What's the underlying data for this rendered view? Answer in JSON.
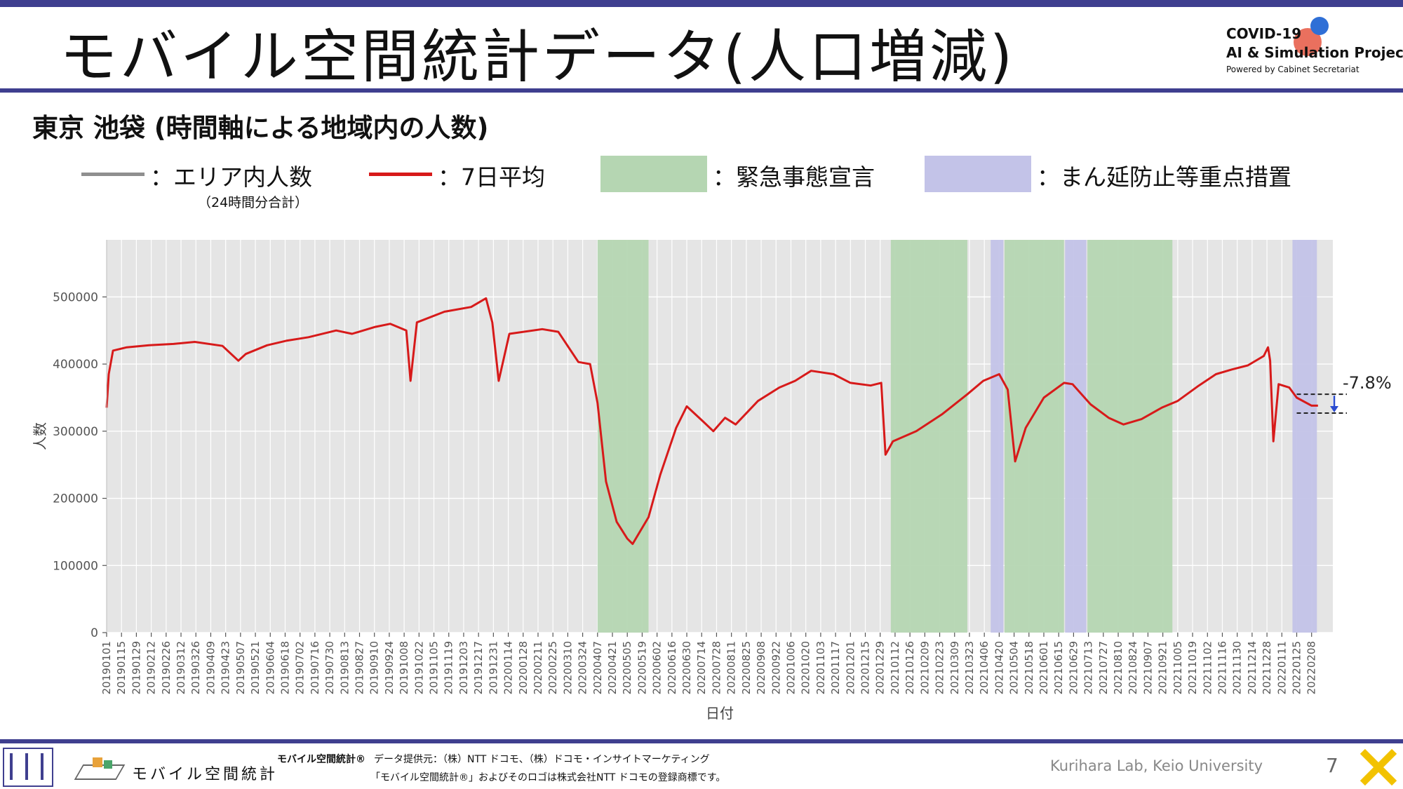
{
  "slide": {
    "title": "モバイル空間統計データ(人口増減)",
    "subtitle": "東京 池袋 (時間軸による地域内の人数)",
    "logo": {
      "line1": "COVID-19",
      "line2": "AI & Simulation Project",
      "line3": "Powered by Cabinet Secretariat"
    },
    "legend": {
      "raw_label": "：エリア内人数",
      "raw_note": "（24時間分合計）",
      "avg_label": "：7日平均",
      "emergency_label": "：緊急事態宣言",
      "semi_label": "：まん延防止等重点措置"
    },
    "footer": {
      "brand_left": "モバイル空間統計",
      "brand_small": "モバイル空間統計®",
      "provider": "データ提供元：（株）NTT ドコモ、（株）ドコモ・インサイトマーケティング",
      "trademark": "「モバイル空間統計®」およびそのロゴは株式会社NTT ドコモの登録商標です。",
      "lab": "Kurihara Lab, Keio University",
      "page": "7"
    },
    "colors": {
      "accent_bar": "#3f3f8f",
      "raw": "#9a9a9a",
      "avg": "#d71a1a",
      "emergency": "#b5d6b2",
      "semi": "#c3c3e8"
    }
  },
  "chart_data": {
    "type": "line",
    "xlabel": "日付",
    "ylabel": "人数",
    "ylim": [
      0,
      585000
    ],
    "yticks": [
      0,
      100000,
      200000,
      300000,
      400000,
      500000
    ],
    "ytick_labels": [
      "0",
      "100000",
      "200000",
      "300000",
      "400000",
      "500000"
    ],
    "xlim": [
      "2019-01-01",
      "2022-02-28"
    ],
    "x_tick_labels": [
      "20190101",
      "20190115",
      "20190129",
      "20190212",
      "20190226",
      "20190312",
      "20190326",
      "20190409",
      "20190423",
      "20190507",
      "20190521",
      "20190604",
      "20190618",
      "20190702",
      "20190716",
      "20190730",
      "20190813",
      "20190827",
      "20190910",
      "20190924",
      "20191008",
      "20191022",
      "20191105",
      "20191119",
      "20191203",
      "20191217",
      "20191231",
      "20200114",
      "20200128",
      "20200211",
      "20200225",
      "20200310",
      "20200324",
      "20200407",
      "20200421",
      "20200505",
      "20200519",
      "20200602",
      "20200616",
      "20200630",
      "20200714",
      "20200728",
      "20200811",
      "20200825",
      "20200908",
      "20200922",
      "20201006",
      "20201020",
      "20201103",
      "20201117",
      "20201201",
      "20201215",
      "20201229",
      "20210112",
      "20210126",
      "20210209",
      "20210223",
      "20210309",
      "20210323",
      "20210406",
      "20210420",
      "20210504",
      "20210518",
      "20210601",
      "20210615",
      "20210629",
      "20210713",
      "20210727",
      "20210810",
      "20210824",
      "20210907",
      "20210921",
      "20211005",
      "20211019",
      "20211102",
      "20211116",
      "20211130",
      "20211214",
      "20211228",
      "20220111",
      "20220125",
      "20220208"
    ],
    "grid": true,
    "bands": [
      {
        "kind": "emergency",
        "start": "2020-04-07",
        "end": "2020-05-25"
      },
      {
        "kind": "emergency",
        "start": "2021-01-08",
        "end": "2021-03-21"
      },
      {
        "kind": "semi",
        "start": "2021-04-12",
        "end": "2021-04-24"
      },
      {
        "kind": "emergency",
        "start": "2021-04-25",
        "end": "2021-06-20"
      },
      {
        "kind": "semi",
        "start": "2021-06-21",
        "end": "2021-07-11"
      },
      {
        "kind": "emergency",
        "start": "2021-07-12",
        "end": "2021-09-30"
      },
      {
        "kind": "semi",
        "start": "2022-01-21",
        "end": "2022-02-13"
      }
    ],
    "series": [
      {
        "name": "7日平均",
        "x": [
          "2019-01-01",
          "2019-01-03",
          "2019-01-07",
          "2019-01-20",
          "2019-02-10",
          "2019-03-05",
          "2019-03-25",
          "2019-04-20",
          "2019-05-05",
          "2019-05-12",
          "2019-06-01",
          "2019-06-20",
          "2019-07-10",
          "2019-08-05",
          "2019-08-20",
          "2019-09-10",
          "2019-09-25",
          "2019-10-10",
          "2019-10-14",
          "2019-10-20",
          "2019-11-15",
          "2019-12-10",
          "2019-12-24",
          "2019-12-30",
          "2020-01-05",
          "2020-01-15",
          "2020-02-15",
          "2020-03-01",
          "2020-03-20",
          "2020-03-31",
          "2020-04-07",
          "2020-04-15",
          "2020-04-25",
          "2020-05-05",
          "2020-05-10",
          "2020-05-25",
          "2020-06-05",
          "2020-06-20",
          "2020-06-30",
          "2020-07-15",
          "2020-07-25",
          "2020-08-05",
          "2020-08-15",
          "2020-09-05",
          "2020-09-25",
          "2020-10-10",
          "2020-10-25",
          "2020-11-15",
          "2020-12-01",
          "2020-12-20",
          "2020-12-30",
          "2021-01-03",
          "2021-01-10",
          "2021-02-01",
          "2021-02-25",
          "2021-03-21",
          "2021-04-05",
          "2021-04-20",
          "2021-04-28",
          "2021-05-05",
          "2021-05-15",
          "2021-06-01",
          "2021-06-20",
          "2021-06-28",
          "2021-07-15",
          "2021-08-01",
          "2021-08-15",
          "2021-09-01",
          "2021-09-20",
          "2021-10-05",
          "2021-10-25",
          "2021-11-10",
          "2021-11-25",
          "2021-12-10",
          "2021-12-25",
          "2021-12-29",
          "2021-12-31",
          "2022-01-03",
          "2022-01-08",
          "2022-01-18",
          "2022-01-25",
          "2022-02-08",
          "2022-02-14"
        ],
        "y": [
          335000,
          385000,
          420000,
          425000,
          428000,
          430000,
          433000,
          427000,
          405000,
          415000,
          428000,
          435000,
          440000,
          450000,
          445000,
          455000,
          460000,
          450000,
          375000,
          462000,
          478000,
          485000,
          498000,
          462000,
          375000,
          445000,
          452000,
          448000,
          403000,
          400000,
          342000,
          225000,
          165000,
          140000,
          132000,
          172000,
          235000,
          305000,
          337000,
          315000,
          300000,
          320000,
          310000,
          345000,
          365000,
          375000,
          390000,
          385000,
          372000,
          368000,
          372000,
          265000,
          285000,
          300000,
          325000,
          355000,
          375000,
          385000,
          362000,
          255000,
          305000,
          350000,
          372000,
          370000,
          340000,
          320000,
          310000,
          318000,
          335000,
          345000,
          368000,
          385000,
          392000,
          398000,
          412000,
          425000,
          405000,
          285000,
          370000,
          365000,
          350000,
          338000,
          338000
        ]
      }
    ],
    "annotation": {
      "text": "-7.8%",
      "from_value": 355000,
      "to_value": 327000
    }
  }
}
